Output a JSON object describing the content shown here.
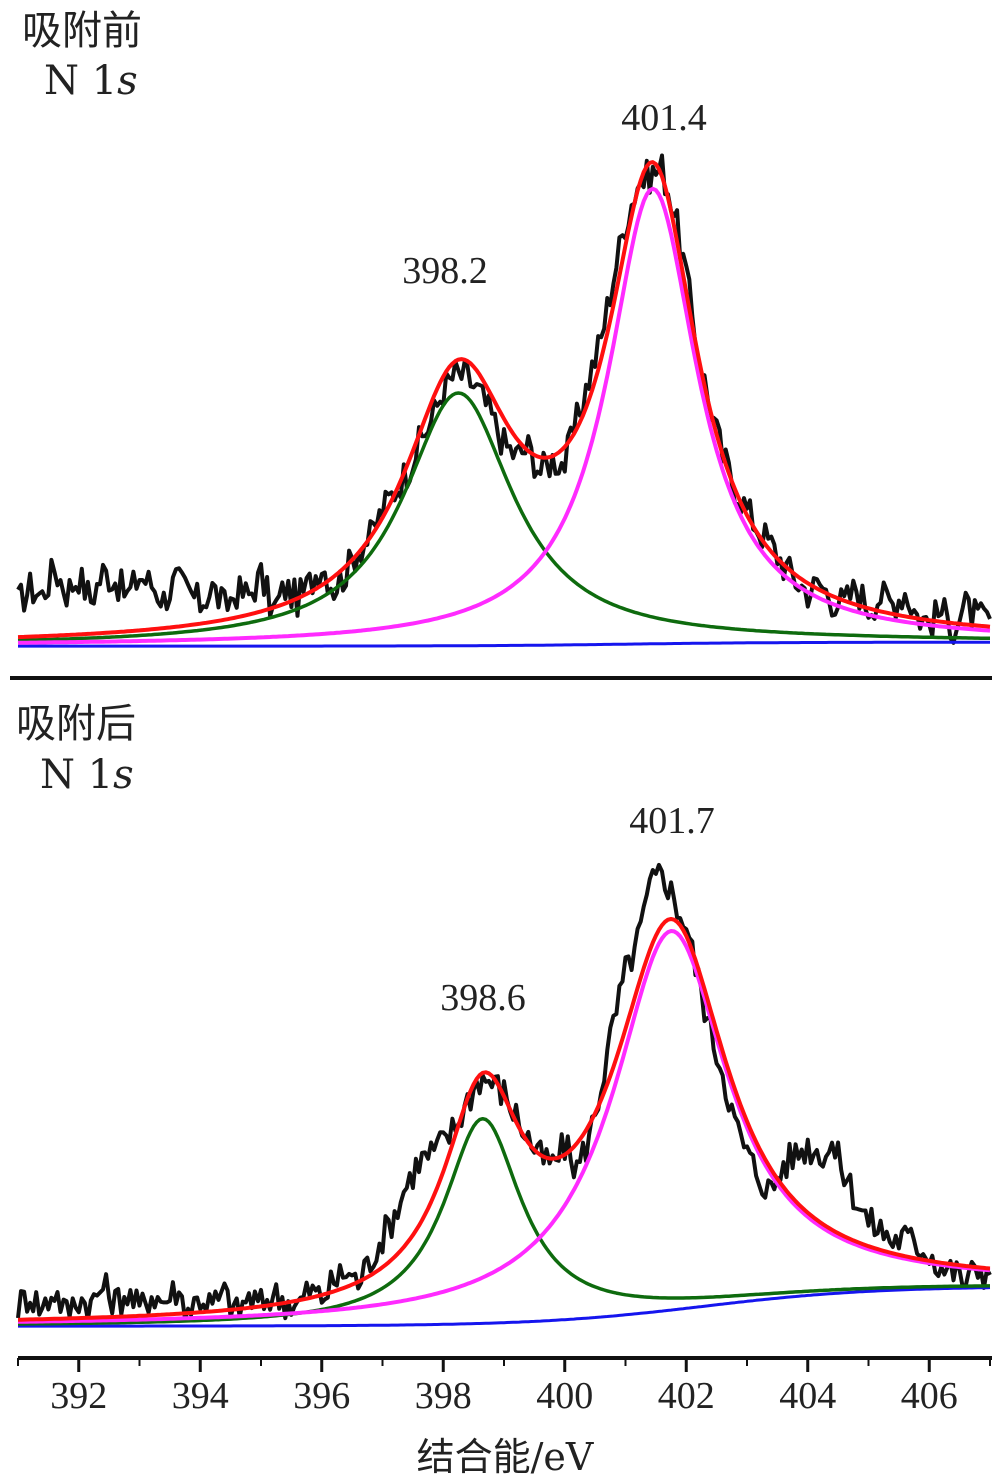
{
  "figure": {
    "x_axis_label": "结合能/eV",
    "x_ticks": [
      392,
      394,
      396,
      398,
      400,
      402,
      404,
      406
    ],
    "xlim": [
      391,
      407
    ]
  },
  "chart_data": [
    {
      "type": "line",
      "panel_title": "吸附前",
      "panel_subtitle_main": "N 1",
      "panel_subtitle_italic": "s",
      "peak_labels": [
        "398.2",
        "401.4"
      ],
      "series_colors": {
        "raw": "#111111",
        "envelope": "#ff1010",
        "peak1": "#0e6b0e",
        "peak2": "#ff2bff",
        "background": "#1515ee"
      },
      "background": {
        "start": 0.1,
        "end": 0.2,
        "step_center": 401.0,
        "step_width": 1.2
      },
      "peaks": [
        {
          "center": 398.25,
          "amplitude": 6.5,
          "fwhm": 2.2
        },
        {
          "center": 401.45,
          "amplitude": 11.7,
          "fwhm": 1.8
        }
      ],
      "raw_points": [
        [
          391.0,
          1.2
        ],
        [
          391.2,
          1.6
        ],
        [
          391.4,
          1.4
        ],
        [
          391.6,
          2.1
        ],
        [
          391.8,
          1.5
        ],
        [
          392.0,
          1.9
        ],
        [
          392.2,
          1.3
        ],
        [
          392.4,
          2.0
        ],
        [
          392.6,
          1.8
        ],
        [
          392.8,
          1.4
        ],
        [
          393.0,
          1.9
        ],
        [
          393.2,
          1.7
        ],
        [
          393.4,
          1.3
        ],
        [
          393.6,
          1.8
        ],
        [
          393.8,
          1.5
        ],
        [
          394.0,
          1.2
        ],
        [
          394.2,
          1.6
        ],
        [
          394.4,
          1.1
        ],
        [
          394.6,
          1.5
        ],
        [
          394.8,
          1.4
        ],
        [
          395.0,
          1.9
        ],
        [
          395.2,
          1.0
        ],
        [
          395.4,
          1.6
        ],
        [
          395.6,
          1.3
        ],
        [
          395.8,
          1.7
        ],
        [
          396.0,
          2.2
        ],
        [
          396.2,
          1.6
        ],
        [
          396.4,
          2.0
        ],
        [
          396.6,
          2.6
        ],
        [
          396.8,
          2.9
        ],
        [
          397.0,
          3.6
        ],
        [
          397.2,
          4.1
        ],
        [
          397.4,
          4.6
        ],
        [
          397.6,
          5.3
        ],
        [
          397.8,
          5.9
        ],
        [
          398.0,
          6.7
        ],
        [
          398.2,
          7.1
        ],
        [
          398.4,
          7.0
        ],
        [
          398.6,
          6.6
        ],
        [
          398.8,
          6.0
        ],
        [
          399.0,
          5.3
        ],
        [
          399.2,
          5.0
        ],
        [
          399.4,
          5.2
        ],
        [
          399.6,
          4.6
        ],
        [
          399.8,
          4.9
        ],
        [
          400.0,
          4.8
        ],
        [
          400.2,
          5.9
        ],
        [
          400.4,
          7.0
        ],
        [
          400.6,
          8.0
        ],
        [
          400.8,
          9.6
        ],
        [
          401.0,
          11.0
        ],
        [
          401.2,
          12.0
        ],
        [
          401.4,
          12.2
        ],
        [
          401.6,
          12.4
        ],
        [
          401.8,
          11.3
        ],
        [
          402.0,
          9.6
        ],
        [
          402.2,
          7.6
        ],
        [
          402.4,
          6.2
        ],
        [
          402.6,
          5.0
        ],
        [
          402.8,
          4.2
        ],
        [
          403.0,
          3.6
        ],
        [
          403.2,
          3.1
        ],
        [
          403.4,
          2.7
        ],
        [
          403.6,
          2.2
        ],
        [
          403.8,
          1.8
        ],
        [
          404.0,
          1.5
        ],
        [
          404.2,
          1.7
        ],
        [
          404.4,
          1.3
        ],
        [
          404.6,
          1.2
        ],
        [
          404.8,
          1.6
        ],
        [
          405.0,
          1.1
        ],
        [
          405.2,
          1.4
        ],
        [
          405.4,
          1.2
        ],
        [
          405.6,
          1.5
        ],
        [
          405.8,
          0.9
        ],
        [
          406.0,
          0.7
        ],
        [
          406.2,
          1.0
        ],
        [
          406.4,
          0.6
        ],
        [
          406.6,
          1.1
        ],
        [
          406.8,
          0.8
        ],
        [
          407.0,
          0.8
        ]
      ]
    },
    {
      "type": "line",
      "panel_title": "吸附后",
      "panel_subtitle_main": "N 1",
      "panel_subtitle_italic": "s",
      "peak_labels": [
        "398.6",
        "401.7"
      ],
      "series_colors": {
        "raw": "#111111",
        "envelope": "#ff1010",
        "peak1": "#0e6b0e",
        "peak2": "#ff2bff",
        "background": "#1515ee"
      },
      "background": {
        "start": 0.05,
        "end": 1.1,
        "step_center": 402.3,
        "step_width": 1.4
      },
      "peaks": [
        {
          "center": 398.65,
          "amplitude": 5.4,
          "fwhm": 1.55
        },
        {
          "center": 401.75,
          "amplitude": 10.0,
          "fwhm": 2.3
        }
      ],
      "raw_points": [
        [
          391.0,
          0.6
        ],
        [
          391.2,
          0.9
        ],
        [
          391.4,
          0.5
        ],
        [
          391.6,
          1.0
        ],
        [
          391.8,
          0.4
        ],
        [
          392.0,
          0.8
        ],
        [
          392.2,
          0.6
        ],
        [
          392.4,
          1.1
        ],
        [
          392.6,
          0.7
        ],
        [
          392.8,
          0.9
        ],
        [
          393.0,
          0.5
        ],
        [
          393.2,
          0.9
        ],
        [
          393.4,
          0.7
        ],
        [
          393.6,
          1.0
        ],
        [
          393.8,
          0.5
        ],
        [
          394.0,
          0.8
        ],
        [
          394.2,
          0.6
        ],
        [
          394.4,
          0.9
        ],
        [
          394.6,
          0.4
        ],
        [
          394.8,
          0.8
        ],
        [
          395.0,
          0.6
        ],
        [
          395.2,
          0.9
        ],
        [
          395.4,
          0.7
        ],
        [
          395.6,
          0.6
        ],
        [
          395.8,
          1.0
        ],
        [
          396.0,
          0.8
        ],
        [
          396.2,
          1.2
        ],
        [
          396.4,
          1.5
        ],
        [
          396.6,
          1.2
        ],
        [
          396.8,
          1.8
        ],
        [
          397.0,
          2.4
        ],
        [
          397.2,
          3.0
        ],
        [
          397.4,
          3.8
        ],
        [
          397.6,
          4.4
        ],
        [
          397.8,
          4.6
        ],
        [
          398.0,
          4.9
        ],
        [
          398.2,
          5.3
        ],
        [
          398.4,
          6.0
        ],
        [
          398.6,
          6.6
        ],
        [
          398.8,
          6.5
        ],
        [
          399.0,
          6.2
        ],
        [
          399.2,
          5.6
        ],
        [
          399.4,
          5.0
        ],
        [
          399.6,
          4.5
        ],
        [
          399.8,
          4.3
        ],
        [
          400.0,
          4.8
        ],
        [
          400.2,
          4.2
        ],
        [
          400.4,
          5.0
        ],
        [
          400.6,
          6.4
        ],
        [
          400.8,
          8.0
        ],
        [
          401.0,
          9.4
        ],
        [
          401.2,
          10.2
        ],
        [
          401.4,
          11.6
        ],
        [
          401.6,
          12.1
        ],
        [
          401.8,
          11.3
        ],
        [
          402.0,
          10.6
        ],
        [
          402.2,
          9.2
        ],
        [
          402.4,
          7.8
        ],
        [
          402.6,
          6.8
        ],
        [
          402.8,
          5.4
        ],
        [
          403.0,
          4.6
        ],
        [
          403.2,
          4.0
        ],
        [
          403.4,
          3.6
        ],
        [
          403.6,
          4.3
        ],
        [
          403.8,
          4.6
        ],
        [
          404.0,
          4.8
        ],
        [
          404.2,
          4.6
        ],
        [
          404.4,
          4.8
        ],
        [
          404.6,
          4.1
        ],
        [
          404.8,
          3.4
        ],
        [
          405.0,
          2.8
        ],
        [
          405.2,
          2.6
        ],
        [
          405.4,
          2.3
        ],
        [
          405.6,
          2.4
        ],
        [
          405.8,
          2.2
        ],
        [
          406.0,
          2.0
        ],
        [
          406.2,
          1.6
        ],
        [
          406.4,
          1.5
        ],
        [
          406.6,
          1.2
        ],
        [
          406.8,
          1.6
        ],
        [
          407.0,
          1.4
        ]
      ]
    }
  ]
}
